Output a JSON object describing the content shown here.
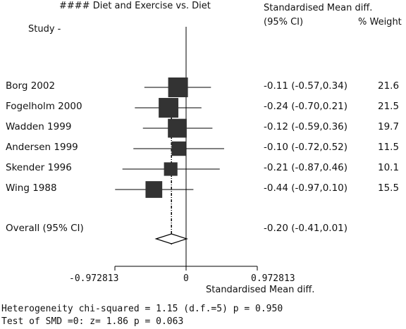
{
  "chart_data": {
    "type": "forest",
    "title": "#### Diet and Exercise vs. Diet",
    "columns": {
      "study": "Study -",
      "effect_line1": "Standardised Mean diff.",
      "effect_line2": "(95% CI)",
      "weight": "% Weight"
    },
    "xlabel": "Standardised Mean diff.",
    "xlim": [
      -0.972813,
      0.972813
    ],
    "xticks": [
      "-0.972813",
      "0",
      "0.972813"
    ],
    "studies": [
      {
        "name": "Borg 2002",
        "smd": -0.11,
        "lo": -0.57,
        "hi": 0.34,
        "ci_text": "-0.11 (-0.57,0.34)",
        "weight": "21.6"
      },
      {
        "name": "Fogelholm 2000",
        "smd": -0.24,
        "lo": -0.7,
        "hi": 0.21,
        "ci_text": "-0.24 (-0.70,0.21)",
        "weight": "21.5"
      },
      {
        "name": "Wadden 1999",
        "smd": -0.12,
        "lo": -0.59,
        "hi": 0.36,
        "ci_text": "-0.12 (-0.59,0.36)",
        "weight": "19.7"
      },
      {
        "name": "Andersen 1999",
        "smd": -0.1,
        "lo": -0.72,
        "hi": 0.52,
        "ci_text": "-0.10 (-0.72,0.52)",
        "weight": "11.5"
      },
      {
        "name": "Skender 1996",
        "smd": -0.21,
        "lo": -0.87,
        "hi": 0.46,
        "ci_text": "-0.21 (-0.87,0.46)",
        "weight": "10.1"
      },
      {
        "name": "Wing 1988",
        "smd": -0.44,
        "lo": -0.97,
        "hi": 0.1,
        "ci_text": "-0.44 (-0.97,0.10)",
        "weight": "15.5"
      }
    ],
    "overall": {
      "name": "Overall (95% CI)",
      "smd": -0.2,
      "lo": -0.41,
      "hi": 0.01,
      "ci_text": "-0.20 (-0.41,0.01)"
    },
    "footnotes": [
      "Heterogeneity chi-squared = 1.15 (d.f.=5) p = 0.950",
      "Test of SMD =0: z= 1.86 p = 0.063"
    ],
    "colors": {
      "marker": "#333333",
      "line": "#000000"
    }
  }
}
